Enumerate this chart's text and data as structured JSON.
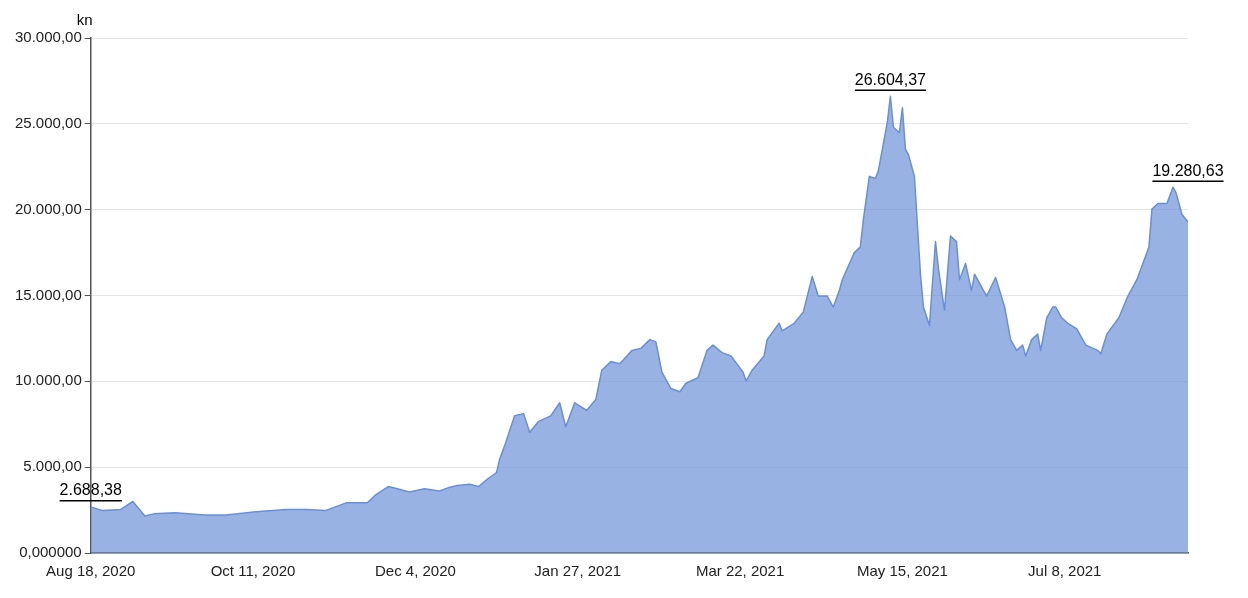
{
  "chart_data": {
    "type": "area",
    "ylabel": "kn",
    "color": "#6a8fd6",
    "grid": "y",
    "legend": false,
    "marker": "none",
    "xlim": [
      "2020-08-18",
      "2021-08-18"
    ],
    "xticks": [
      {
        "value": "2020-08-18",
        "label": "Aug 18, 2020"
      },
      {
        "value": "2020-10-11",
        "label": "Oct 11, 2020"
      },
      {
        "value": "2020-12-04",
        "label": "Dec 4, 2020"
      },
      {
        "value": "2021-01-27",
        "label": "Jan 27, 2021"
      },
      {
        "value": "2021-03-22",
        "label": "Mar 22, 2021"
      },
      {
        "value": "2021-05-15",
        "label": "May 15, 2021"
      },
      {
        "value": "2021-07-08",
        "label": "Jul 8, 2021"
      }
    ],
    "ylim": [
      0,
      30000
    ],
    "yticks": [
      {
        "value": 0,
        "label": "0,000000"
      },
      {
        "value": 5000,
        "label": "5.000,00"
      },
      {
        "value": 10000,
        "label": "10.000,00"
      },
      {
        "value": 15000,
        "label": "15.000,00"
      },
      {
        "value": 20000,
        "label": "20.000,00"
      },
      {
        "value": 25000,
        "label": "25.000,00"
      },
      {
        "value": 30000,
        "label": "30.000,00"
      }
    ],
    "x": [
      "2020-08-18",
      "2020-08-22",
      "2020-08-28",
      "2020-09-01",
      "2020-09-05",
      "2020-09-08",
      "2020-09-15",
      "2020-09-25",
      "2020-10-02",
      "2020-10-12",
      "2020-10-22",
      "2020-10-29",
      "2020-11-04",
      "2020-11-11",
      "2020-11-18",
      "2020-11-21",
      "2020-11-25",
      "2020-11-28",
      "2020-12-02",
      "2020-12-07",
      "2020-12-12",
      "2020-12-15",
      "2020-12-18",
      "2020-12-22",
      "2020-12-25",
      "2020-12-28",
      "2020-12-31",
      "2021-01-01",
      "2021-01-03",
      "2021-01-06",
      "2021-01-09",
      "2021-01-11",
      "2021-01-14",
      "2021-01-18",
      "2021-01-21",
      "2021-01-23",
      "2021-01-26",
      "2021-01-30",
      "2021-02-02",
      "2021-02-04",
      "2021-02-07",
      "2021-02-10",
      "2021-02-14",
      "2021-02-17",
      "2021-02-20",
      "2021-02-22",
      "2021-02-24",
      "2021-02-27",
      "2021-03-02",
      "2021-03-04",
      "2021-03-08",
      "2021-03-11",
      "2021-03-13",
      "2021-03-16",
      "2021-03-19",
      "2021-03-23",
      "2021-03-24",
      "2021-03-26",
      "2021-03-30",
      "2021-03-31",
      "2021-04-04",
      "2021-04-05",
      "2021-04-09",
      "2021-04-12",
      "2021-04-15",
      "2021-04-17",
      "2021-04-20",
      "2021-04-22",
      "2021-04-24",
      "2021-04-25",
      "2021-04-29",
      "2021-05-01",
      "2021-05-02",
      "2021-05-04",
      "2021-05-06",
      "2021-05-07",
      "2021-05-10",
      "2021-05-11",
      "2021-05-12",
      "2021-05-14",
      "2021-05-15",
      "2021-05-16",
      "2021-05-17",
      "2021-05-19",
      "2021-05-21",
      "2021-05-22",
      "2021-05-24",
      "2021-05-26",
      "2021-05-27",
      "2021-05-29",
      "2021-05-31",
      "2021-06-02",
      "2021-06-03",
      "2021-06-05",
      "2021-06-07",
      "2021-06-08",
      "2021-06-12",
      "2021-06-15",
      "2021-06-18",
      "2021-06-20",
      "2021-06-22",
      "2021-06-24",
      "2021-06-25",
      "2021-06-27",
      "2021-06-29",
      "2021-06-30",
      "2021-07-02",
      "2021-07-04",
      "2021-07-05",
      "2021-07-07",
      "2021-07-09",
      "2021-07-12",
      "2021-07-15",
      "2021-07-19",
      "2021-07-20",
      "2021-07-22",
      "2021-07-26",
      "2021-07-29",
      "2021-08-01",
      "2021-08-05",
      "2021-08-06",
      "2021-08-08",
      "2021-08-11",
      "2021-08-13",
      "2021-08-14",
      "2021-08-16",
      "2021-08-18"
    ],
    "values": [
      2688.38,
      2470,
      2540,
      3000,
      2160,
      2280,
      2350,
      2220,
      2220,
      2410,
      2540,
      2540,
      2470,
      2920,
      2920,
      3420,
      3870,
      3740,
      3550,
      3740,
      3610,
      3810,
      3930,
      4000,
      3870,
      4310,
      4690,
      5450,
      6410,
      7990,
      8120,
      7040,
      7670,
      7990,
      8750,
      7360,
      8750,
      8310,
      8940,
      10650,
      11160,
      11030,
      11800,
      11920,
      12430,
      12300,
      10530,
      9580,
      9390,
      9890,
      10210,
      11800,
      12110,
      11670,
      11480,
      10530,
      10020,
      10650,
      11480,
      12430,
      13380,
      12940,
      13380,
      14020,
      16110,
      14970,
      14970,
      14330,
      15280,
      15920,
      17500,
      17820,
      19410,
      21940,
      21820,
      22260,
      25110,
      26604.37,
      24800,
      24480,
      25940,
      23530,
      23210,
      21940,
      16240,
      14330,
      13250,
      18140,
      16550,
      14140,
      18460,
      18140,
      15920,
      16870,
      15280,
      16240,
      14970,
      16050,
      14330,
      12430,
      11800,
      12110,
      11480,
      12430,
      12750,
      11800,
      13700,
      14330,
      14330,
      13700,
      13380,
      13060,
      12110,
      11800,
      11610,
      12750,
      13700,
      14970,
      15920,
      17820,
      20040,
      20360,
      20360,
      21310,
      20990,
      19720,
      19280.63
    ],
    "annotations": [
      {
        "text": "2.688,38",
        "x": "2020-08-18",
        "y": 2688.38
      },
      {
        "text": "26.604,37",
        "x": "2021-05-11",
        "y": 26604.37
      },
      {
        "text": "19.280,63",
        "x": "2021-08-18",
        "y": 19280.63
      }
    ]
  }
}
